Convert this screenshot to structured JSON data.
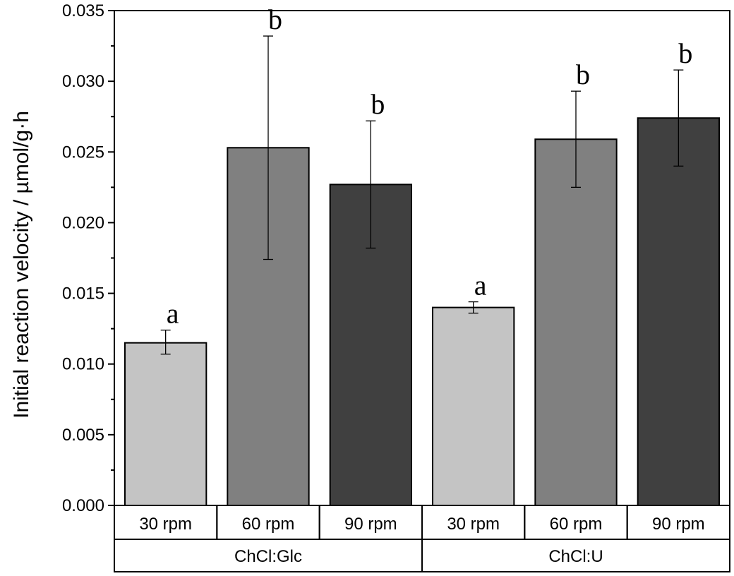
{
  "chart_data": {
    "type": "bar",
    "title": "",
    "xlabel": "",
    "ylabel": "Initial reaction velocity / µmol/g·h",
    "ylim": [
      0,
      0.035
    ],
    "yticks": [
      "0.000",
      "0.005",
      "0.010",
      "0.015",
      "0.020",
      "0.025",
      "0.030",
      "0.035"
    ],
    "ytick_values": [
      0,
      0.005,
      0.01,
      0.015,
      0.02,
      0.025,
      0.03,
      0.035
    ],
    "grid": false,
    "groups": [
      {
        "name": "ChCl:Glc",
        "bars": [
          {
            "label": "30 rpm",
            "value": 0.0115,
            "error_low": 0.0107,
            "error_high": 0.0124,
            "letter": "a",
            "color": "#c4c4c4"
          },
          {
            "label": "60 rpm",
            "value": 0.0253,
            "error_low": 0.0174,
            "error_high": 0.0332,
            "letter": "b",
            "color": "#808080"
          },
          {
            "label": "90 rpm",
            "value": 0.0227,
            "error_low": 0.0182,
            "error_high": 0.0272,
            "letter": "b",
            "color": "#404040"
          }
        ]
      },
      {
        "name": "ChCl:U",
        "bars": [
          {
            "label": "30 rpm",
            "value": 0.014,
            "error_low": 0.0136,
            "error_high": 0.0144,
            "letter": "a",
            "color": "#c4c4c4"
          },
          {
            "label": "60 rpm",
            "value": 0.0259,
            "error_low": 0.0225,
            "error_high": 0.0293,
            "letter": "b",
            "color": "#808080"
          },
          {
            "label": "90 rpm",
            "value": 0.0274,
            "error_low": 0.024,
            "error_high": 0.0308,
            "letter": "b",
            "color": "#404040"
          }
        ]
      }
    ]
  }
}
